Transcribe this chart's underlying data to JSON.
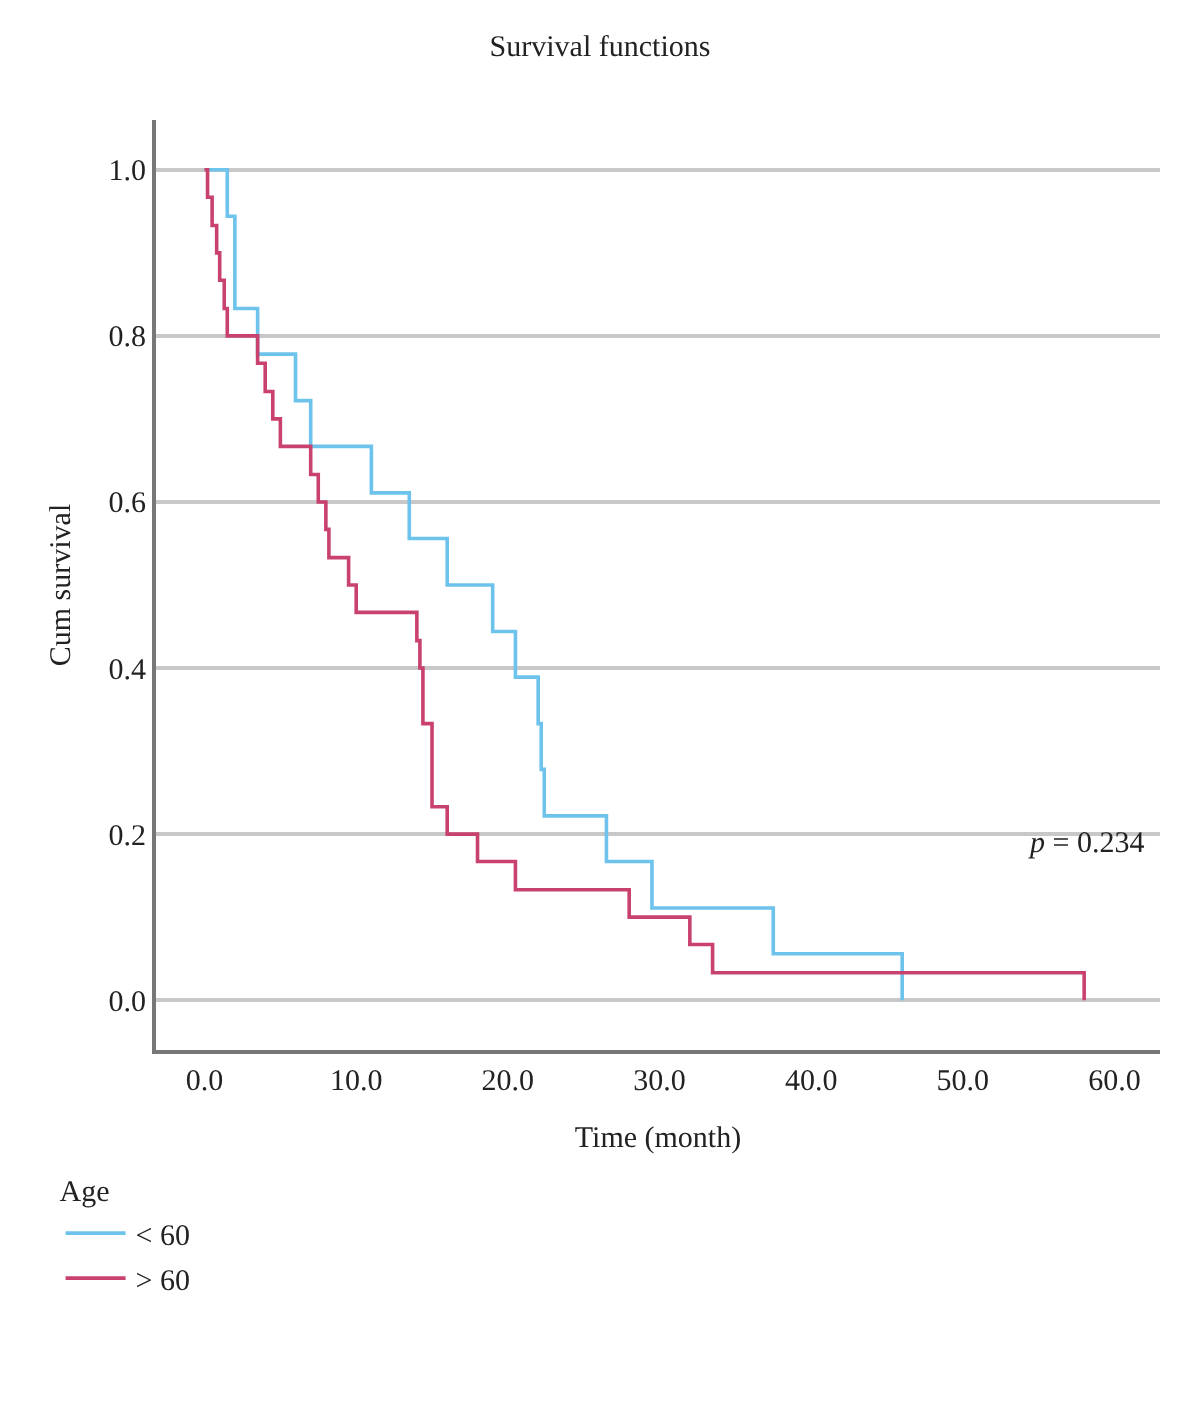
{
  "chart_data": {
    "type": "step",
    "title": "Survival functions",
    "xlabel": "Time (month)",
    "ylabel": "Cum survival",
    "legend_title": "Age",
    "series": [
      {
        "name": "< 60",
        "color": "#6ec3ec",
        "x": [
          0,
          1.5,
          2,
          3.5,
          6,
          7,
          11,
          13.5,
          16,
          19,
          20.5,
          22,
          22.2,
          22.4,
          26.5,
          29.5,
          37.5,
          46
        ],
        "values": [
          1.0,
          0.944,
          0.833,
          0.778,
          0.722,
          0.667,
          0.611,
          0.556,
          0.5,
          0.444,
          0.389,
          0.333,
          0.278,
          0.222,
          0.167,
          0.111,
          0.056,
          0
        ]
      },
      {
        "name": "> 60",
        "color": "#c9426e",
        "x": [
          0,
          0.2,
          0.5,
          0.8,
          1.0,
          1.3,
          1.5,
          3.5,
          4,
          4.5,
          5,
          7,
          7.5,
          8,
          8.2,
          9.5,
          10,
          14,
          14.2,
          14.4,
          15,
          16,
          18,
          20.5,
          28,
          32,
          33.5,
          58
        ],
        "values": [
          1.0,
          0.967,
          0.933,
          0.9,
          0.867,
          0.833,
          0.8,
          0.767,
          0.733,
          0.7,
          0.667,
          0.633,
          0.6,
          0.567,
          0.533,
          0.5,
          0.467,
          0.433,
          0.4,
          0.333,
          0.233,
          0.2,
          0.167,
          0.133,
          0.1,
          0.067,
          0.033,
          0
        ]
      }
    ],
    "xlim": [
      -3.2,
      63
    ],
    "xticks": [
      {
        "value": 0,
        "label": "0.0"
      },
      {
        "value": 10,
        "label": "10.0"
      },
      {
        "value": 20,
        "label": "20.0"
      },
      {
        "value": 30,
        "label": "30.0"
      },
      {
        "value": 40,
        "label": "40.0"
      },
      {
        "value": 50,
        "label": "50.0"
      },
      {
        "value": 60,
        "label": "60.0"
      }
    ],
    "ylim": [
      -0.06,
      1.06
    ],
    "yticks": [
      {
        "value": 0,
        "label": "0.0"
      },
      {
        "value": 0.2,
        "label": "0.2"
      },
      {
        "value": 0.4,
        "label": "0.4"
      },
      {
        "value": 0.6,
        "label": "0.6"
      },
      {
        "value": 0.8,
        "label": "0.8"
      },
      {
        "value": 1.0,
        "label": "1.0"
      }
    ],
    "annotations": [
      "p = 0.234"
    ],
    "grid": "y",
    "legend": "bottom left",
    "marker": "none",
    "line_style": "solid"
  }
}
